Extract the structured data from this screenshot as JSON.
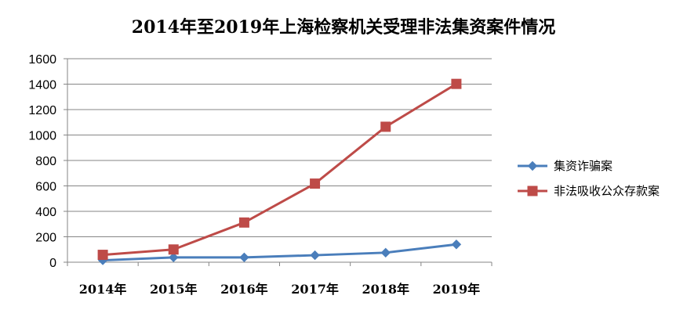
{
  "chart_data": {
    "type": "line",
    "title": "2014年至2019年上海检察机关受理非法集资案件情况",
    "xlabel": "",
    "ylabel": "",
    "categories": [
      "2014年",
      "2015年",
      "2016年",
      "2017年",
      "2018年",
      "2019年"
    ],
    "ylim": [
      0,
      1600
    ],
    "yticks": [
      0,
      200,
      400,
      600,
      800,
      1000,
      1200,
      1400,
      1600
    ],
    "grid": true,
    "legend_position": "right",
    "series": [
      {
        "name": "集资诈骗案",
        "color": "#4a7ebb",
        "marker": "diamond",
        "values": [
          15,
          38,
          38,
          55,
          75,
          140
        ]
      },
      {
        "name": "非法吸收公众存款案",
        "color": "#be4b48",
        "marker": "square",
        "values": [
          58,
          100,
          312,
          618,
          1065,
          1402
        ]
      }
    ]
  }
}
